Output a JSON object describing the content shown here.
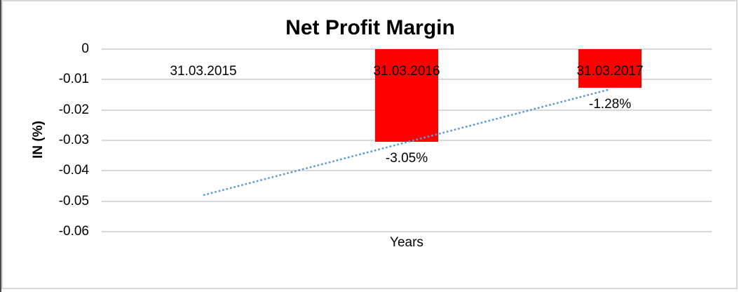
{
  "window": {
    "background": "#FFFFFF",
    "frame_border_color": "#D8D8D8",
    "edge_color": "#4D4D4D"
  },
  "chart_data": {
    "type": "bar",
    "title": "Net Profit Margin",
    "xlabel": "Years",
    "ylabel": "IN (%)",
    "categories": [
      "31.03.2015",
      "31.03.2016",
      "31.03.2017"
    ],
    "series": [
      {
        "name": "Net Profit Margin",
        "values": [
          null,
          -0.0305,
          -0.0128
        ],
        "data_labels": [
          "",
          "-3.05%",
          "-1.28%"
        ],
        "color": "#FF0000"
      }
    ],
    "ylim": [
      -0.06,
      0
    ],
    "ytick_values": [
      0,
      -0.01,
      -0.02,
      -0.03,
      -0.04,
      -0.05,
      -0.06
    ],
    "ytick_labels": [
      "0",
      "-0.01",
      "-0.02",
      "-0.03",
      "-0.04",
      "-0.05",
      "-0.06"
    ],
    "grid": true,
    "gridline_color": "#D9D9D9",
    "legend": "none",
    "text_color": "#000000",
    "trendline": {
      "type": "linear",
      "style": "dotted",
      "color": "#5B9BD5",
      "start": {
        "category_index": 0,
        "value": -0.048
      },
      "end": {
        "category_index": 2,
        "value": -0.0132
      }
    }
  }
}
